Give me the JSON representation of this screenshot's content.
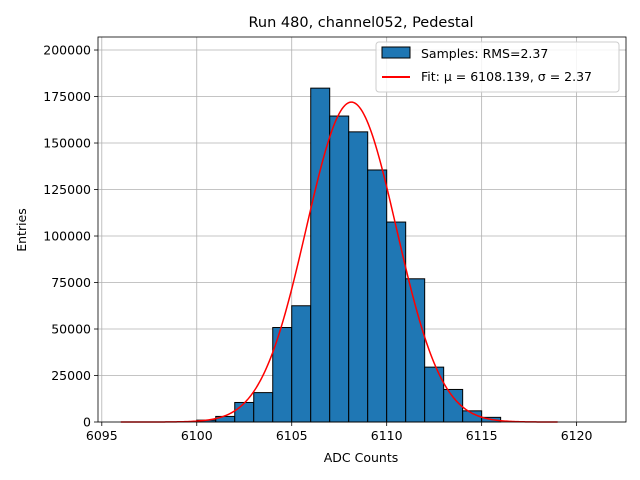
{
  "chart_data": {
    "type": "bar",
    "title": "Run 480, channel052, Pedestal",
    "xlabel": "ADC Counts",
    "ylabel": "Entries",
    "xlim": [
      6094.8,
      6122.6
    ],
    "ylim": [
      0,
      207000
    ],
    "x_ticks": [
      6095,
      6100,
      6105,
      6110,
      6115,
      6120
    ],
    "y_ticks": [
      0,
      25000,
      50000,
      75000,
      100000,
      125000,
      150000,
      175000,
      200000
    ],
    "grid": true,
    "legend_position": "top-right",
    "bin_width": 1,
    "histogram": {
      "name": "Samples: RMS=2.37",
      "color": "#1f77b4",
      "edge_color": "#000000",
      "bin_starts": [
        6100,
        6101,
        6102,
        6103,
        6104,
        6105,
        6106,
        6107,
        6108,
        6109,
        6110,
        6111,
        6112,
        6113,
        6114,
        6115
      ],
      "values": [
        1000,
        3000,
        10500,
        15800,
        50800,
        62500,
        179500,
        164500,
        156000,
        135500,
        107500,
        77000,
        29500,
        17500,
        6000,
        2500
      ]
    },
    "fit": {
      "name": "Fit: μ = 6108.139, σ = 2.37",
      "color": "#ff0000",
      "mu": 6108.139,
      "sigma": 2.37,
      "amplitude": 172000,
      "x_range": [
        6096,
        6119
      ]
    }
  }
}
